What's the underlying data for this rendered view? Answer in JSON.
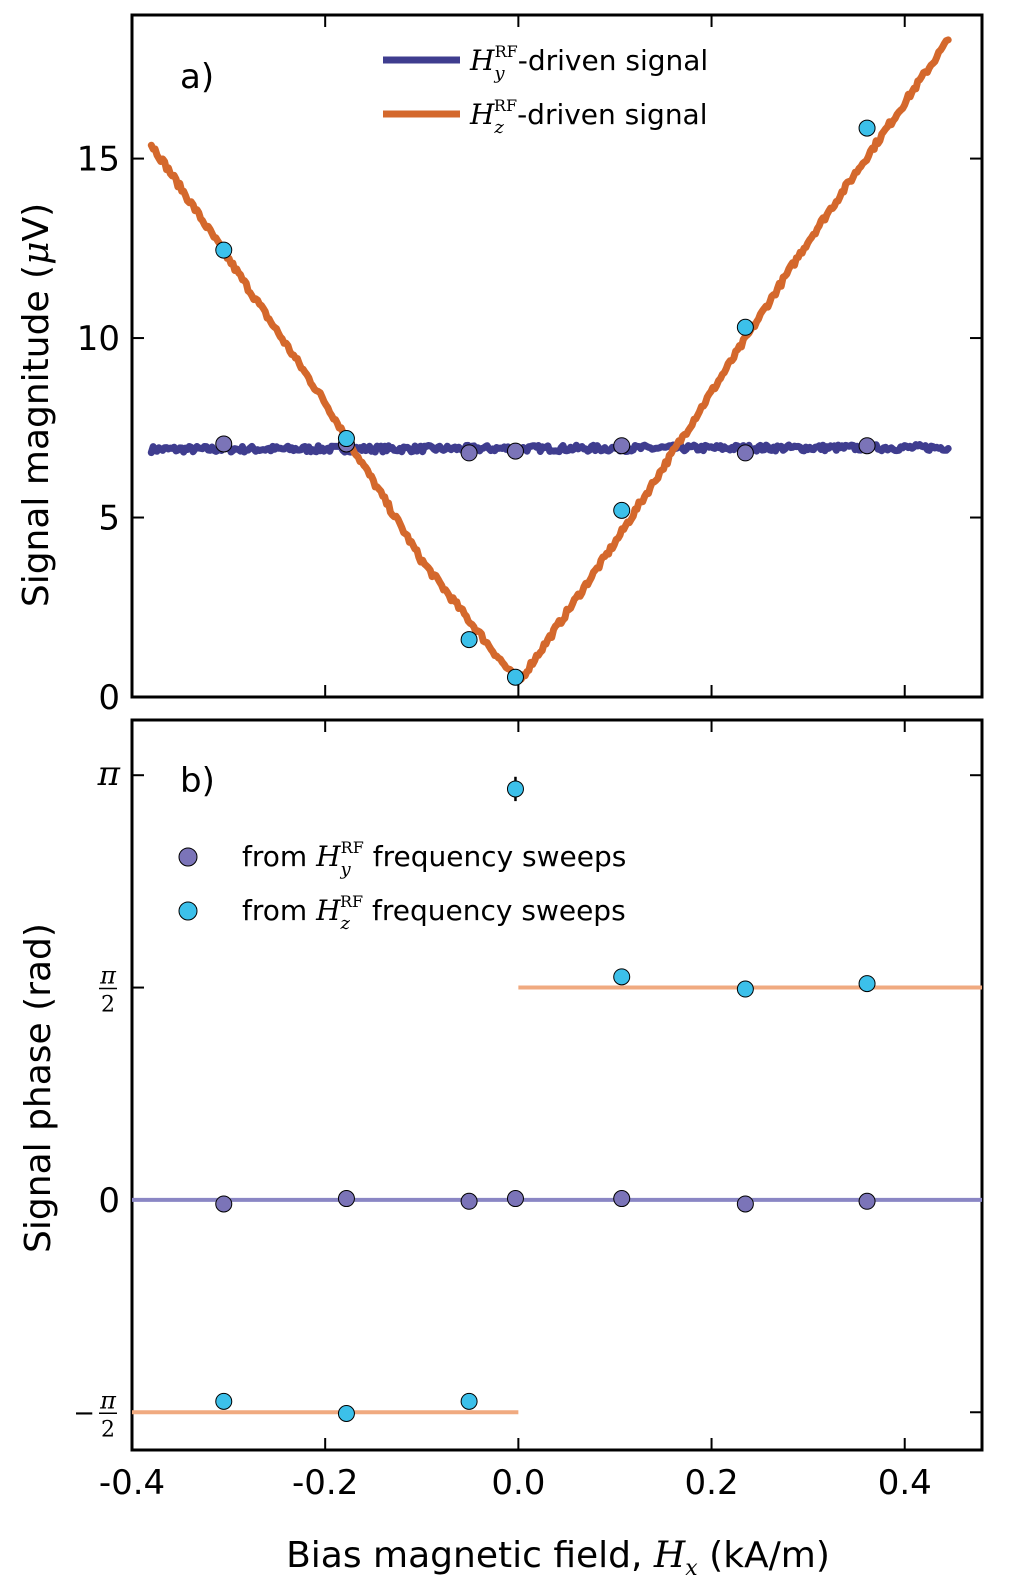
{
  "colors": {
    "hy_line": "#3f3d8f",
    "hz_line": "#d4682c",
    "hy_marker": "#7b74b8",
    "hz_marker": "#3cc0ea",
    "hy_phase_line": "#8a86c4",
    "hz_phase_line": "#f0aa80"
  },
  "chart_data": [
    {
      "panel": "a)",
      "type": "line",
      "ylabel_main": "Signal magnitude (",
      "ylabel_mu": "μ",
      "ylabel_tail": "V)",
      "xlim": [
        -0.4,
        0.48
      ],
      "ylim": [
        0,
        19
      ],
      "yticks": [
        0,
        5,
        10,
        15
      ],
      "ytick_labels": [
        "0",
        "5",
        "10",
        "15"
      ],
      "legend": [
        {
          "sym": "H",
          "sub": "y",
          "sup": "RF",
          "rest": "-driven signal"
        },
        {
          "sym": "H",
          "sub": "z",
          "sup": "RF",
          "rest": "-driven signal"
        }
      ],
      "series": [
        {
          "name": "Hy-driven signal",
          "x": [
            -0.38,
            0.445
          ],
          "values": [
            6.9,
            6.95
          ]
        },
        {
          "name": "Hz-driven signal",
          "x": [
            -0.38,
            -0.2,
            -0.1,
            0.0,
            0.1,
            0.2,
            0.3,
            0.445
          ],
          "values": [
            15.4,
            8.2,
            3.8,
            0.4,
            4.3,
            8.5,
            12.7,
            18.3
          ]
        }
      ],
      "points": [
        {
          "name": "Hy points",
          "x": [
            -0.305,
            -0.178,
            -0.051,
            -0.003,
            0.107,
            0.235,
            0.361
          ],
          "values": [
            7.05,
            7.05,
            6.8,
            6.85,
            7.0,
            6.8,
            7.0
          ]
        },
        {
          "name": "Hz points",
          "x": [
            -0.305,
            -0.178,
            -0.051,
            -0.003,
            0.107,
            0.235,
            0.361
          ],
          "values": [
            12.45,
            7.2,
            1.6,
            0.55,
            5.2,
            10.3,
            15.85
          ]
        }
      ]
    },
    {
      "panel": "b)",
      "type": "scatter",
      "ylabel": "Signal phase (rad)",
      "xlabel_main": "Bias magnetic field, ",
      "xlabel_sym": "H",
      "xlabel_sub": "x",
      "xlabel_tail": " (kA/m)",
      "xlim": [
        -0.4,
        0.48
      ],
      "ylim": [
        -1.85,
        3.55
      ],
      "xticks": [
        -0.4,
        -0.2,
        0.0,
        0.2,
        0.4
      ],
      "xtick_labels": [
        "-0.4",
        "-0.2",
        "0.0",
        "0.2",
        "0.4"
      ],
      "yticks": [
        -1.5708,
        0,
        1.5708,
        3.1416
      ],
      "ytick_labels": {
        "pi": "π",
        "half_num": "π",
        "half_den": "2",
        "neg": "−",
        "zero": "0"
      },
      "legend": [
        {
          "pre": "from ",
          "sym": "H",
          "sub": "y",
          "sup": "RF",
          "rest": " frequency sweeps"
        },
        {
          "pre": "from ",
          "sym": "H",
          "sub": "z",
          "sup": "RF",
          "rest": " frequency sweeps"
        }
      ],
      "lines": [
        {
          "name": "Hy phase",
          "x": [
            -0.4,
            0.48
          ],
          "values": [
            0,
            0
          ]
        },
        {
          "name": "Hz phase positive",
          "x": [
            0.0,
            0.48
          ],
          "values": [
            1.5708,
            1.5708
          ]
        },
        {
          "name": "Hz phase negative",
          "x": [
            -0.4,
            0.0
          ],
          "values": [
            -1.5708,
            -1.5708
          ]
        }
      ],
      "points": [
        {
          "name": "Hy points",
          "x": [
            -0.305,
            -0.178,
            -0.051,
            -0.003,
            0.107,
            0.235,
            0.361
          ],
          "values": [
            -0.03,
            0.01,
            -0.01,
            0.01,
            0.01,
            -0.03,
            -0.01
          ]
        },
        {
          "name": "Hz points",
          "x": [
            -0.305,
            -0.178,
            -0.051,
            -0.003,
            0.107,
            0.235,
            0.361
          ],
          "values": [
            -1.49,
            -1.58,
            -1.49,
            3.04,
            1.65,
            1.56,
            1.6
          ]
        }
      ],
      "errorbar": {
        "x": -0.003,
        "value": 3.04,
        "err": 0.09
      }
    }
  ]
}
